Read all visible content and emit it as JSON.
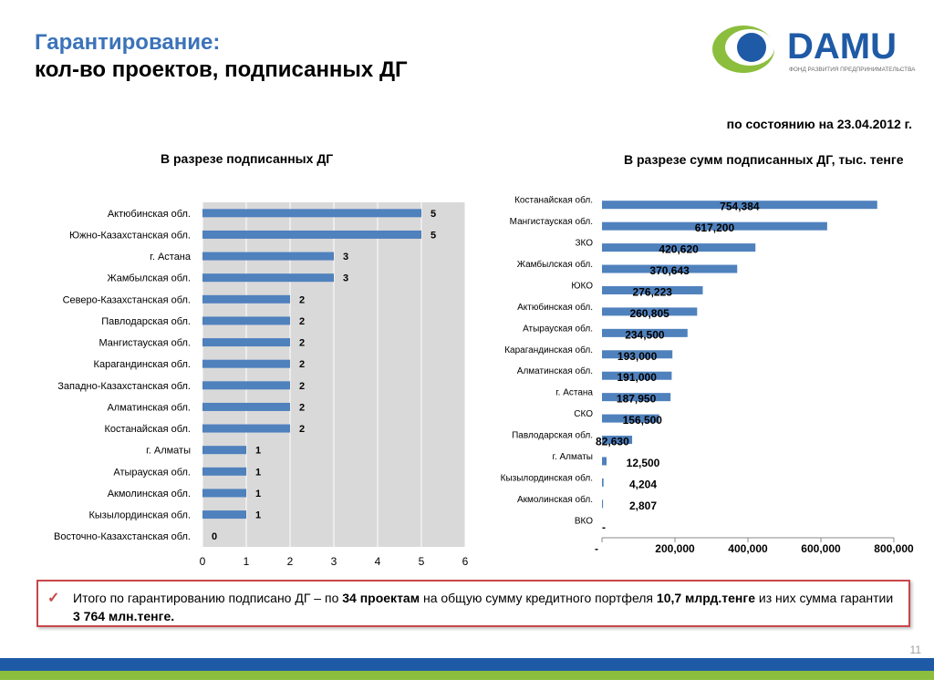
{
  "header": {
    "title_line1": "Гарантирование:",
    "title_line2": "кол-во проектов, подписанных ДГ",
    "as_of": "по состоянию на 23.04.2012 г."
  },
  "logo": {
    "name": "DAMU",
    "tagline": "ФОНД РАЗВИТИЯ ПРЕДПРИНИМАТЕЛЬСТВА",
    "colors": {
      "blue": "#1f5aa6",
      "green": "#8cbe3e"
    }
  },
  "chart_data": [
    {
      "type": "bar",
      "orientation": "horizontal",
      "title": "В разрезе подписанных ДГ",
      "categories": [
        "Актюбинская обл.",
        "Южно-Казахстанская обл.",
        "г. Астана",
        "Жамбылская обл.",
        "Северо-Казахстанская обл.",
        "Павлодарская обл.",
        "Мангистауская обл.",
        "Карагандинская обл.",
        "Западно-Казахстанская обл.",
        "Алматинская обл.",
        "Костанайская обл.",
        "г. Алматы",
        "Атырауская обл.",
        "Акмолинская обл.",
        "Кызылординская обл.",
        "Восточно-Казахстанская обл."
      ],
      "values": [
        5,
        5,
        3,
        3,
        2,
        2,
        2,
        2,
        2,
        2,
        2,
        1,
        1,
        1,
        1,
        0
      ],
      "labels": [
        "5",
        "5",
        "3",
        "3",
        "2",
        "2",
        "2",
        "2",
        "2",
        "2",
        "2",
        "1",
        "1",
        "1",
        "1",
        "0"
      ],
      "xlim": [
        0,
        6
      ],
      "xticks": [
        "0",
        "1",
        "2",
        "3",
        "4",
        "5",
        "6"
      ],
      "grid": true,
      "plot_background": "#d9d9d9",
      "bar_color": "#4f81bd"
    },
    {
      "type": "bar",
      "orientation": "horizontal",
      "title": "В разрезе сумм подписанных ДГ, тыс. тенге",
      "categories": [
        "Костанайская обл.",
        "Мангистауская обл.",
        "ЗКО",
        "Жамбылская обл.",
        "ЮКО",
        "Актюбинская обл.",
        "Атырауская обл.",
        "Карагандинская обл.",
        "Алматинская обл.",
        "г. Астана",
        "СКО",
        "Павлодарская обл.",
        "г. Алматы",
        "Кызылординская обл.",
        "Акмолинская обл.",
        "ВКО"
      ],
      "values": [
        754384,
        617200,
        420620,
        370643,
        276223,
        260805,
        234500,
        193000,
        191000,
        187950,
        156500,
        82630,
        12500,
        4204,
        2807,
        0
      ],
      "labels": [
        "754,384",
        "617,200",
        "420,620",
        "370,643",
        "276,223",
        "260,805",
        "234,500",
        "193,000",
        "191,000",
        "187,950",
        "156,500",
        "82,630",
        "12,500",
        "4,204",
        "2,807",
        "-"
      ],
      "xlim": [
        0,
        800000
      ],
      "xticks": [
        "-",
        "200,000",
        "400,000",
        "600,000",
        "800,000"
      ],
      "grid": false,
      "bar_color": "#4f81bd"
    }
  ],
  "summary": {
    "text_before": "Итого по гарантированию подписано ДГ – по ",
    "projects": "34 проектам",
    "text_middle": " на общую сумму кредитного портфеля  ",
    "portfolio": "10,7 млрд.тенге",
    "text_after": "  из них сумма гарантии ",
    "guarantee": "3 764 млн.тенге."
  },
  "footer": {
    "page_number": "11"
  }
}
